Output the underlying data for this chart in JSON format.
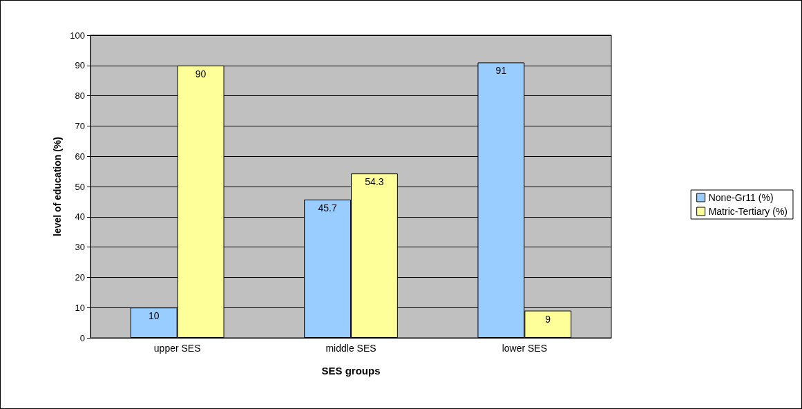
{
  "chart_data": {
    "type": "bar",
    "xlabel": "SES groups",
    "ylabel": "level of education (%)",
    "categories": [
      "upper SES",
      "middle SES",
      "lower SES"
    ],
    "series": [
      {
        "name": "None-Gr11 (%)",
        "color": "#99ccff",
        "values": [
          10,
          45.7,
          91
        ]
      },
      {
        "name": "Matric-Tertiary (%)",
        "color": "#ffff99",
        "values": [
          90,
          54.3,
          9
        ]
      }
    ],
    "ylim": [
      0,
      100
    ],
    "yticks": [
      0,
      10,
      20,
      30,
      40,
      50,
      60,
      70,
      80,
      90,
      100
    ],
    "grid": "y",
    "legend": "right",
    "data_labels": true
  }
}
